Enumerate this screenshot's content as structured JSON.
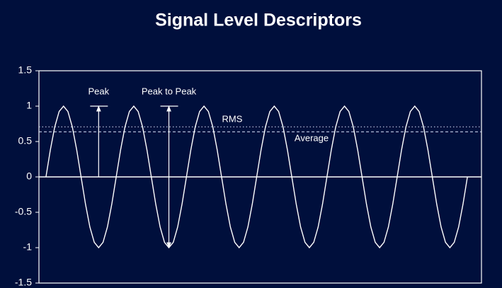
{
  "chart_data": {
    "type": "line",
    "title": "Signal Level Descriptors",
    "xlim": [
      -0.1,
      6.2
    ],
    "ylim": [
      -1.5,
      1.5
    ],
    "yticks": [
      -1.5,
      -1,
      -0.5,
      0,
      0.5,
      1,
      1.5
    ],
    "x": [
      0,
      0.0625,
      0.125,
      0.1875,
      0.25,
      0.3125,
      0.375,
      0.4375,
      0.5,
      0.5625,
      0.625,
      0.6875,
      0.75,
      0.8125,
      0.875,
      0.9375,
      1,
      1.0625,
      1.125,
      1.1875,
      1.25,
      1.3125,
      1.375,
      1.4375,
      1.5,
      1.5625,
      1.625,
      1.6875,
      1.75,
      1.8125,
      1.875,
      1.9375,
      2,
      2.0625,
      2.125,
      2.1875,
      2.25,
      2.3125,
      2.375,
      2.4375,
      2.5,
      2.5625,
      2.625,
      2.6875,
      2.75,
      2.8125,
      2.875,
      2.9375,
      3,
      3.0625,
      3.125,
      3.1875,
      3.25,
      3.3125,
      3.375,
      3.4375,
      3.5,
      3.5625,
      3.625,
      3.6875,
      3.75,
      3.8125,
      3.875,
      3.9375,
      4,
      4.0625,
      4.125,
      4.1875,
      4.25,
      4.3125,
      4.375,
      4.4375,
      4.5,
      4.5625,
      4.625,
      4.6875,
      4.75,
      4.8125,
      4.875,
      4.9375,
      5,
      5.0625,
      5.125,
      5.1875,
      5.25,
      5.3125,
      5.375,
      5.4375,
      5.5,
      5.5625,
      5.625,
      5.6875,
      5.75,
      5.8125,
      5.875,
      5.9375,
      6
    ],
    "series": [
      {
        "color": "#ffffff",
        "values": [
          0,
          0.383,
          0.707,
          0.924,
          1,
          0.924,
          0.707,
          0.383,
          0,
          -0.383,
          -0.707,
          -0.924,
          -1,
          -0.924,
          -0.707,
          -0.383,
          0,
          0.383,
          0.707,
          0.924,
          1,
          0.924,
          0.707,
          0.383,
          0,
          -0.383,
          -0.707,
          -0.924,
          -1,
          -0.924,
          -0.707,
          -0.383,
          0,
          0.383,
          0.707,
          0.924,
          1,
          0.924,
          0.707,
          0.383,
          0,
          -0.383,
          -0.707,
          -0.924,
          -1,
          -0.924,
          -0.707,
          -0.383,
          0,
          0.383,
          0.707,
          0.924,
          1,
          0.924,
          0.707,
          0.383,
          0,
          -0.383,
          -0.707,
          -0.924,
          -1,
          -0.924,
          -0.707,
          -0.383,
          0,
          0.383,
          0.707,
          0.924,
          1,
          0.924,
          0.707,
          0.383,
          0,
          -0.383,
          -0.707,
          -0.924,
          -1,
          -0.924,
          -0.707,
          -0.383,
          0,
          0.383,
          0.707,
          0.924,
          1,
          0.924,
          0.707,
          0.383,
          0,
          -0.383,
          -0.707,
          -0.924,
          -1,
          -0.924,
          -0.707,
          -0.383,
          0
        ]
      }
    ],
    "reference_lines": [
      {
        "label": "RMS",
        "value": 0.707,
        "style": "dotted"
      },
      {
        "label": "Average",
        "value": 0.637,
        "style": "dashed"
      }
    ],
    "annotations": [
      {
        "text": "Peak",
        "x": 0.75,
        "from": 0,
        "to": 1
      },
      {
        "text": "Peak to Peak",
        "x": 1.75,
        "from": -1,
        "to": 1
      }
    ]
  }
}
